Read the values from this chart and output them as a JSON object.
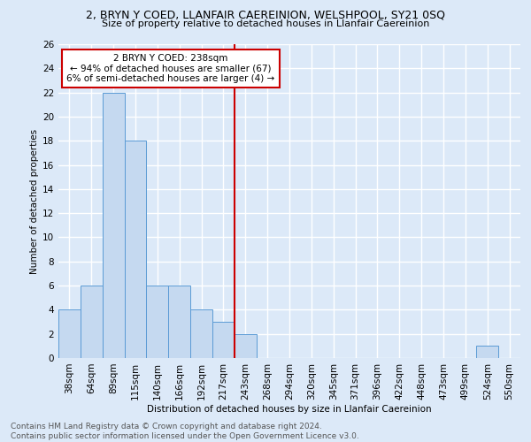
{
  "title": "2, BRYN Y COED, LLANFAIR CAEREINION, WELSHPOOL, SY21 0SQ",
  "subtitle": "Size of property relative to detached houses in Llanfair Caereinion",
  "xlabel": "Distribution of detached houses by size in Llanfair Caereinion",
  "ylabel": "Number of detached properties",
  "footer_line1": "Contains HM Land Registry data © Crown copyright and database right 2024.",
  "footer_line2": "Contains public sector information licensed under the Open Government Licence v3.0.",
  "bar_labels": [
    "38sqm",
    "64sqm",
    "89sqm",
    "115sqm",
    "140sqm",
    "166sqm",
    "192sqm",
    "217sqm",
    "243sqm",
    "268sqm",
    "294sqm",
    "320sqm",
    "345sqm",
    "371sqm",
    "396sqm",
    "422sqm",
    "448sqm",
    "473sqm",
    "499sqm",
    "524sqm",
    "550sqm"
  ],
  "bar_values": [
    4,
    6,
    22,
    18,
    6,
    6,
    4,
    3,
    2,
    0,
    0,
    0,
    0,
    0,
    0,
    0,
    0,
    0,
    0,
    1,
    0
  ],
  "bar_color": "#c5d9f0",
  "bar_edge_color": "#5b9bd5",
  "vline_x_index": 7.5,
  "property_line_label": "2 BRYN Y COED: 238sqm",
  "annotation_line2": "← 94% of detached houses are smaller (67)",
  "annotation_line3": "6% of semi-detached houses are larger (4) →",
  "annotation_box_color": "#ffffff",
  "annotation_box_edge_color": "#cc0000",
  "vline_color": "#cc0000",
  "ylim": [
    0,
    26
  ],
  "yticks": [
    0,
    2,
    4,
    6,
    8,
    10,
    12,
    14,
    16,
    18,
    20,
    22,
    24,
    26
  ],
  "background_color": "#dce9f8",
  "grid_color": "#ffffff",
  "title_fontsize": 9,
  "subtitle_fontsize": 8,
  "axis_label_fontsize": 7.5,
  "tick_fontsize": 7.5,
  "annotation_fontsize": 7.5,
  "footer_fontsize": 6.5
}
